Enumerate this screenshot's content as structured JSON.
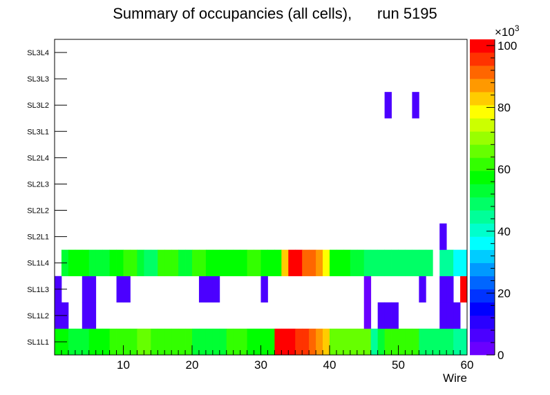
{
  "chart_data": {
    "type": "heatmap",
    "title": "Summary of occupancies (all cells),      run 5195",
    "xlabel": "Wire",
    "ylabel": "",
    "x_range": [
      0,
      60
    ],
    "x_ticks": [
      10,
      20,
      30,
      40,
      50,
      60
    ],
    "y_categories": [
      "SL1L1",
      "SL1L2",
      "SL1L3",
      "SL1L4",
      "SL2L1",
      "SL2L2",
      "SL2L3",
      "SL2L4",
      "SL3L1",
      "SL3L2",
      "SL3L3",
      "SL3L4"
    ],
    "z_range": [
      0,
      102
    ],
    "z_ticks": [
      0,
      20,
      40,
      60,
      80,
      100
    ],
    "z_exponent_base": "×10",
    "z_exponent": "3",
    "palette": [
      "#6a00ff",
      "#4b00ff",
      "#2a00ff",
      "#0000ff",
      "#0033ff",
      "#0066ff",
      "#0099ff",
      "#00ccff",
      "#00ffff",
      "#00ffcc",
      "#00ff99",
      "#00ff66",
      "#00ff33",
      "#00ff00",
      "#33ff00",
      "#66ff00",
      "#99ff00",
      "#ccff00",
      "#ffff00",
      "#ffcc00",
      "#ff9900",
      "#ff6600",
      "#ff3300",
      "#ff0000"
    ],
    "rows": {
      "SL1L1": [
        58,
        58,
        53,
        53,
        53,
        57,
        57,
        57,
        63,
        63,
        63,
        63,
        66,
        66,
        62,
        62,
        60,
        60,
        62,
        62,
        55,
        55,
        55,
        55,
        55,
        62,
        62,
        62,
        57,
        57,
        57,
        57,
        100,
        100,
        100,
        97,
        97,
        92,
        88,
        83,
        64,
        64,
        64,
        64,
        64,
        64,
        43,
        52,
        61,
        61,
        61,
        61,
        61,
        48,
        48,
        48,
        48,
        48,
        45,
        45
      ],
      "SL1L2": [
        5,
        5,
        0,
        0,
        5,
        5,
        0,
        0,
        0,
        0,
        0,
        0,
        0,
        0,
        0,
        0,
        0,
        0,
        0,
        0,
        0,
        0,
        0,
        0,
        0,
        0,
        0,
        0,
        0,
        0,
        0,
        0,
        0,
        0,
        0,
        0,
        0,
        0,
        0,
        0,
        0,
        0,
        0,
        0,
        0,
        4,
        0,
        5,
        5,
        5,
        0,
        0,
        0,
        0,
        0,
        0,
        5,
        5,
        5,
        0
      ],
      "SL1L3": [
        5,
        0,
        0,
        0,
        5,
        5,
        0,
        0,
        0,
        5,
        5,
        0,
        0,
        0,
        0,
        0,
        0,
        0,
        0,
        0,
        0,
        5,
        5,
        5,
        0,
        0,
        0,
        0,
        0,
        0,
        5,
        0,
        0,
        0,
        0,
        0,
        0,
        0,
        0,
        0,
        0,
        0,
        0,
        0,
        0,
        4,
        0,
        0,
        0,
        0,
        0,
        0,
        0,
        5,
        0,
        0,
        5,
        5,
        0,
        98
      ],
      "SL1L4": [
        0,
        53,
        58,
        58,
        58,
        55,
        55,
        55,
        58,
        58,
        62,
        62,
        55,
        48,
        48,
        62,
        62,
        62,
        55,
        55,
        60,
        60,
        57,
        57,
        57,
        57,
        57,
        57,
        60,
        60,
        57,
        57,
        57,
        82,
        99,
        99,
        92,
        92,
        88,
        80,
        57,
        59,
        59,
        53,
        53,
        48,
        48,
        48,
        48,
        48,
        48,
        48,
        48,
        48,
        48,
        0,
        43,
        43,
        37,
        37
      ],
      "SL2L1": [
        0,
        0,
        0,
        0,
        0,
        0,
        0,
        0,
        0,
        0,
        0,
        0,
        0,
        0,
        0,
        0,
        0,
        0,
        0,
        0,
        0,
        0,
        0,
        0,
        0,
        0,
        0,
        0,
        0,
        0,
        0,
        0,
        0,
        0,
        0,
        0,
        0,
        0,
        0,
        0,
        0,
        0,
        0,
        0,
        0,
        0,
        0,
        0,
        0,
        0,
        0,
        0,
        0,
        0,
        0,
        0,
        5,
        0,
        0,
        0
      ],
      "SL2L2": [
        0,
        0,
        0,
        0,
        0,
        0,
        0,
        0,
        0,
        0,
        0,
        0,
        0,
        0,
        0,
        0,
        0,
        0,
        0,
        0,
        0,
        0,
        0,
        0,
        0,
        0,
        0,
        0,
        0,
        0,
        0,
        0,
        0,
        0,
        0,
        0,
        0,
        0,
        0,
        0,
        0,
        0,
        0,
        0,
        0,
        0,
        0,
        0,
        0,
        0,
        0,
        0,
        0,
        0,
        0,
        0,
        0,
        0,
        0,
        0
      ],
      "SL2L3": [
        0,
        0,
        0,
        0,
        0,
        0,
        0,
        0,
        0,
        0,
        0,
        0,
        0,
        0,
        0,
        0,
        0,
        0,
        0,
        0,
        0,
        0,
        0,
        0,
        0,
        0,
        0,
        0,
        0,
        0,
        0,
        0,
        0,
        0,
        0,
        0,
        0,
        0,
        0,
        0,
        0,
        0,
        0,
        0,
        0,
        0,
        0,
        0,
        0,
        0,
        0,
        0,
        0,
        0,
        0,
        0,
        0,
        0,
        0,
        0
      ],
      "SL2L4": [
        0,
        0,
        0,
        0,
        0,
        0,
        0,
        0,
        0,
        0,
        0,
        0,
        0,
        0,
        0,
        0,
        0,
        0,
        0,
        0,
        0,
        0,
        0,
        0,
        0,
        0,
        0,
        0,
        0,
        0,
        0,
        0,
        0,
        0,
        0,
        0,
        0,
        0,
        0,
        0,
        0,
        0,
        0,
        0,
        0,
        0,
        0,
        0,
        0,
        0,
        0,
        0,
        0,
        0,
        0,
        0,
        0,
        0,
        0,
        0
      ],
      "SL3L1": [
        0,
        0,
        0,
        0,
        0,
        0,
        0,
        0,
        0,
        0,
        0,
        0,
        0,
        0,
        0,
        0,
        0,
        0,
        0,
        0,
        0,
        0,
        0,
        0,
        0,
        0,
        0,
        0,
        0,
        0,
        0,
        0,
        0,
        0,
        0,
        0,
        0,
        0,
        0,
        0,
        0,
        0,
        0,
        0,
        0,
        0,
        0,
        0,
        0,
        0,
        0,
        0,
        0,
        0,
        0,
        0,
        0,
        0,
        0,
        0
      ],
      "SL3L2": [
        0,
        0,
        0,
        0,
        0,
        0,
        0,
        0,
        0,
        0,
        0,
        0,
        0,
        0,
        0,
        0,
        0,
        0,
        0,
        0,
        0,
        0,
        0,
        0,
        0,
        0,
        0,
        0,
        0,
        0,
        0,
        0,
        0,
        0,
        0,
        0,
        0,
        0,
        0,
        0,
        0,
        0,
        0,
        0,
        0,
        0,
        0,
        0,
        5,
        0,
        0,
        0,
        5,
        0,
        0,
        0,
        0,
        0,
        0,
        0
      ],
      "SL3L3": [
        0,
        0,
        0,
        0,
        0,
        0,
        0,
        0,
        0,
        0,
        0,
        0,
        0,
        0,
        0,
        0,
        0,
        0,
        0,
        0,
        0,
        0,
        0,
        0,
        0,
        0,
        0,
        0,
        0,
        0,
        0,
        0,
        0,
        0,
        0,
        0,
        0,
        0,
        0,
        0,
        0,
        0,
        0,
        0,
        0,
        0,
        0,
        0,
        0,
        0,
        0,
        0,
        0,
        0,
        0,
        0,
        0,
        0,
        0,
        0
      ],
      "SL3L4": [
        0,
        0,
        0,
        0,
        0,
        0,
        0,
        0,
        0,
        0,
        0,
        0,
        0,
        0,
        0,
        0,
        0,
        0,
        0,
        0,
        0,
        0,
        0,
        0,
        0,
        0,
        0,
        0,
        0,
        0,
        0,
        0,
        0,
        0,
        0,
        0,
        0,
        0,
        0,
        0,
        0,
        0,
        0,
        0,
        0,
        0,
        0,
        0,
        0,
        0,
        0,
        0,
        0,
        0,
        0,
        0,
        0,
        0,
        0,
        0
      ]
    }
  }
}
